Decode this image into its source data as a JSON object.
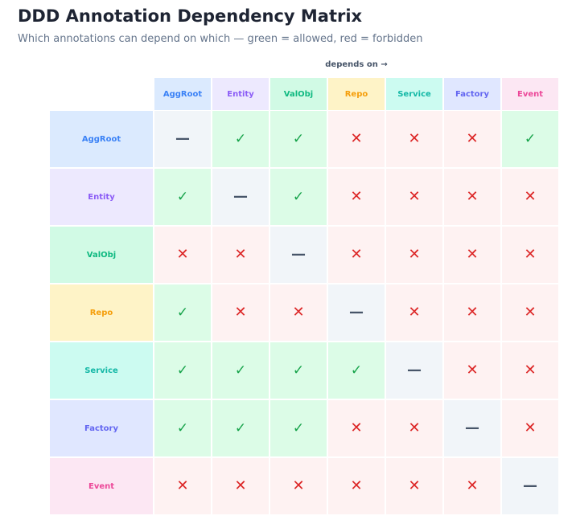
{
  "header": {
    "title": "DDD Annotation Dependency Matrix",
    "subtitle": "Which annotations can depend on which — green = allowed, red = forbidden",
    "axis_label": "depends on →"
  },
  "annotations": [
    {
      "key": "AggRoot",
      "label": "AggRoot",
      "color": "#3b82f6",
      "bg": "#dbeafe"
    },
    {
      "key": "Entity",
      "label": "Entity",
      "color": "#8b5cf6",
      "bg": "#ede9fe"
    },
    {
      "key": "ValObj",
      "label": "ValObj",
      "color": "#10b981",
      "bg": "#d1fae5"
    },
    {
      "key": "Repo",
      "label": "Repo",
      "color": "#f59e0b",
      "bg": "#fef3c7"
    },
    {
      "key": "Service",
      "label": "Service",
      "color": "#14b8a6",
      "bg": "#ccfbf1"
    },
    {
      "key": "Factory",
      "label": "Factory",
      "color": "#6366f1",
      "bg": "#e0e7ff"
    },
    {
      "key": "Event",
      "label": "Event",
      "color": "#ec4899",
      "bg": "#fce7f3"
    }
  ],
  "matrix": [
    [
      "self",
      "allowed",
      "allowed",
      "forbidden",
      "forbidden",
      "forbidden",
      "allowed"
    ],
    [
      "allowed",
      "self",
      "allowed",
      "forbidden",
      "forbidden",
      "forbidden",
      "forbidden"
    ],
    [
      "forbidden",
      "forbidden",
      "self",
      "forbidden",
      "forbidden",
      "forbidden",
      "forbidden"
    ],
    [
      "allowed",
      "forbidden",
      "forbidden",
      "self",
      "forbidden",
      "forbidden",
      "forbidden"
    ],
    [
      "allowed",
      "allowed",
      "allowed",
      "allowed",
      "self",
      "forbidden",
      "forbidden"
    ],
    [
      "allowed",
      "allowed",
      "allowed",
      "forbidden",
      "forbidden",
      "self",
      "forbidden"
    ],
    [
      "forbidden",
      "forbidden",
      "forbidden",
      "forbidden",
      "forbidden",
      "forbidden",
      "self"
    ]
  ],
  "symbols": {
    "allowed": "✓",
    "forbidden": "✕",
    "self": "—"
  },
  "cell_colors": {
    "allowed": "#dcfce7",
    "forbidden": "#fef2f2",
    "self": "#f1f5f9",
    "allowed_mark": "#16a34a",
    "forbidden_mark": "#dc2626",
    "self_mark": "#475569"
  }
}
